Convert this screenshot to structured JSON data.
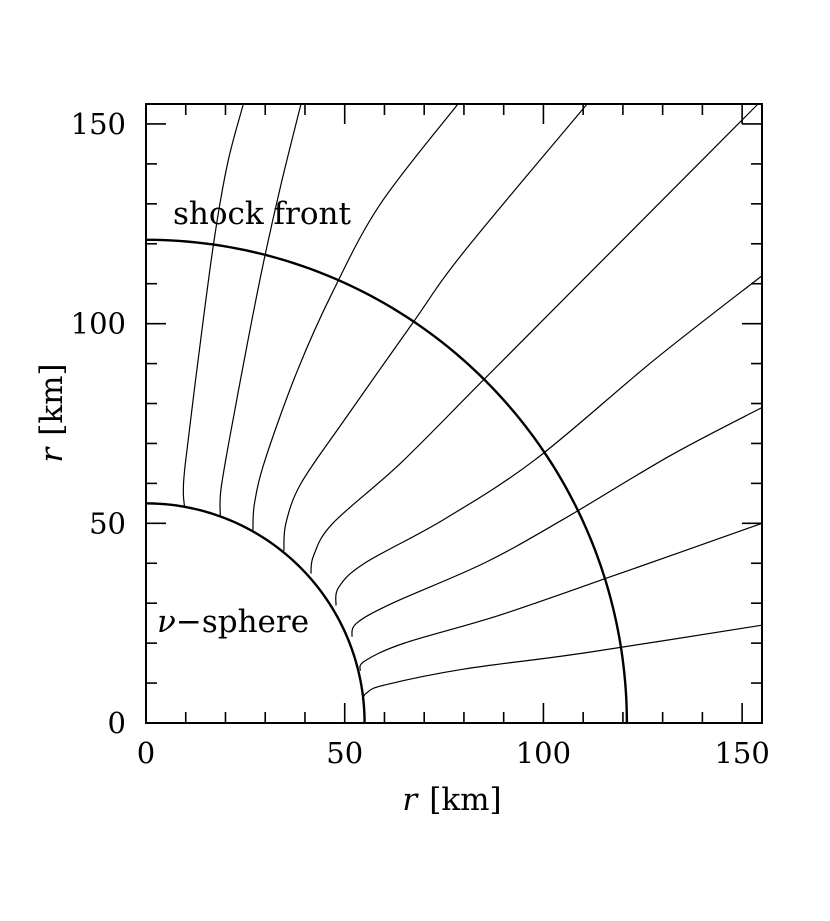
{
  "chart_data": {
    "type": "line",
    "title": "",
    "xlabel": {
      "symbol": "r",
      "unit": "[km]"
    },
    "ylabel": {
      "symbol": "r",
      "unit": "[km]"
    },
    "xlim": [
      0,
      155
    ],
    "ylim": [
      0,
      155
    ],
    "x_ticks": [
      0,
      50,
      100,
      150
    ],
    "y_ticks": [
      0,
      50,
      100,
      150
    ],
    "x_tick_labels": [
      "0",
      "50",
      "100",
      "150"
    ],
    "y_tick_labels": [
      "0",
      "50",
      "100",
      "150"
    ],
    "grid": false,
    "annotations": {
      "shock_front": "shock front",
      "nu_sphere_symbol": "ν",
      "nu_sphere_text": "−sphere"
    },
    "boundaries": [
      {
        "label": "shock front",
        "radius": 121
      },
      {
        "label": "ν−sphere",
        "radius": 55
      }
    ],
    "series": [
      {
        "points": [
          [
            9.7,
            54.1
          ],
          [
            9.4,
            58
          ],
          [
            9.9,
            65
          ],
          [
            13,
            90
          ],
          [
            17,
            120
          ],
          [
            20.5,
            140
          ],
          [
            24.5,
            155
          ]
        ]
      },
      {
        "points": [
          [
            18.7,
            51.7
          ],
          [
            18.8,
            58
          ],
          [
            20.8,
            70
          ],
          [
            25.5,
            95
          ],
          [
            29.5,
            115
          ],
          [
            34,
            135
          ],
          [
            39,
            155
          ]
        ]
      },
      {
        "points": [
          [
            26.9,
            48.0
          ],
          [
            27.3,
            55
          ],
          [
            30,
            66
          ],
          [
            38,
            88
          ],
          [
            47,
            108
          ],
          [
            59,
            130
          ],
          [
            78.5,
            155
          ]
        ]
      },
      {
        "points": [
          [
            34.7,
            43.1
          ],
          [
            35.2,
            50
          ],
          [
            39,
            60
          ],
          [
            50,
            76
          ],
          [
            67,
            100
          ],
          [
            80,
            118
          ],
          [
            111,
            155
          ]
        ]
      },
      {
        "points": [
          [
            41.5,
            37.4
          ],
          [
            42.2,
            42
          ],
          [
            47,
            50
          ],
          [
            64,
            65
          ],
          [
            85,
            86
          ],
          [
            112,
            113
          ],
          [
            154,
            155
          ]
        ]
      },
      {
        "points": [
          [
            47.8,
            29.4
          ],
          [
            48.5,
            34
          ],
          [
            55,
            40
          ],
          [
            75,
            51
          ],
          [
            98,
            66
          ],
          [
            128,
            91
          ],
          [
            155,
            112
          ]
        ]
      },
      {
        "points": [
          [
            51.8,
            21.6
          ],
          [
            53,
            25
          ],
          [
            62,
            30
          ],
          [
            85,
            40
          ],
          [
            105,
            51
          ],
          [
            132,
            67
          ],
          [
            155,
            79
          ]
        ]
      },
      {
        "points": [
          [
            53.9,
            13.1
          ],
          [
            55,
            15.5
          ],
          [
            65,
            20
          ],
          [
            89,
            27
          ],
          [
            118,
            37
          ],
          [
            155,
            50
          ]
        ]
      },
      {
        "points": [
          [
            54.4,
            5.7
          ],
          [
            55.5,
            7.5
          ],
          [
            60,
            9.5
          ],
          [
            80,
            13.5
          ],
          [
            110,
            17.5
          ],
          [
            155,
            24.5
          ]
        ]
      }
    ]
  }
}
